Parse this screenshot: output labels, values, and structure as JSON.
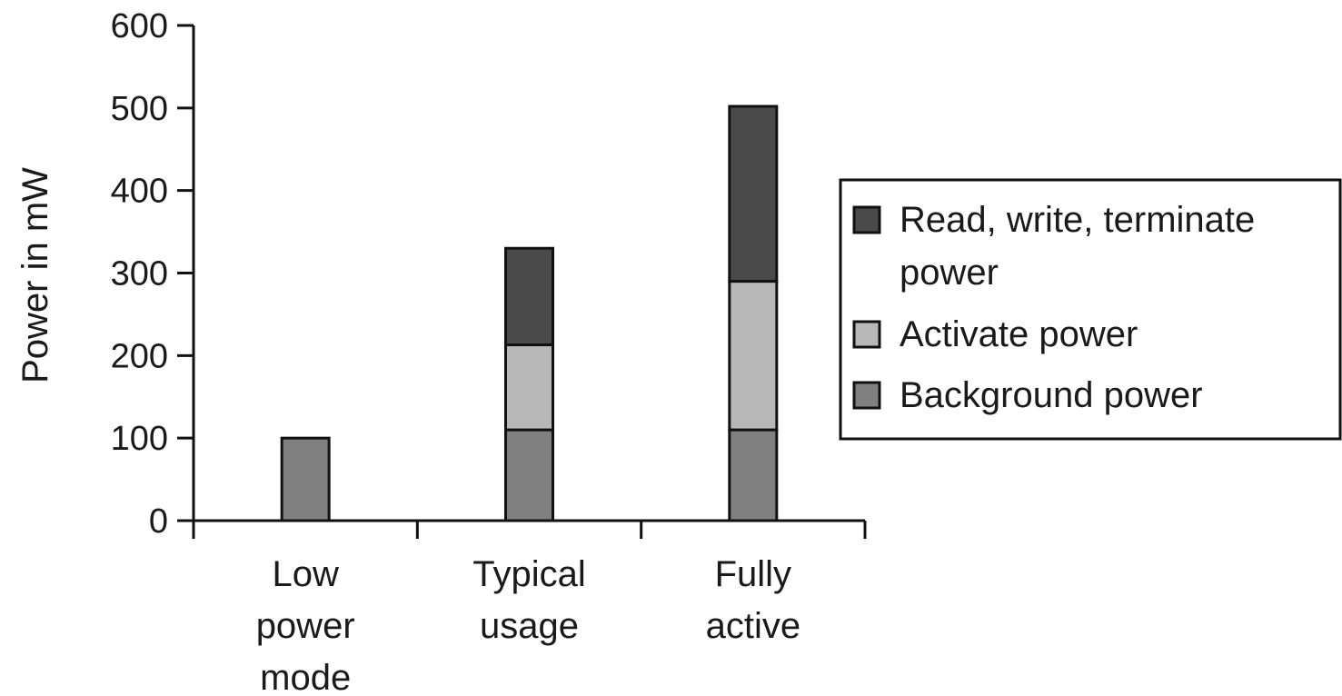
{
  "chart_data": {
    "type": "bar",
    "stacked": true,
    "title": "",
    "xlabel": "",
    "ylabel": "Power in mW",
    "ylim": [
      0,
      600
    ],
    "yticks": [
      0,
      100,
      200,
      300,
      400,
      500,
      600
    ],
    "grid": false,
    "legend_position": "right",
    "categories": [
      [
        "Low",
        "power",
        "mode"
      ],
      [
        "Typical",
        "usage"
      ],
      [
        "Fully",
        "active"
      ]
    ],
    "series": [
      {
        "name": "Background power",
        "values": [
          100,
          110,
          110
        ],
        "color": "#808080"
      },
      {
        "name": "Activate power",
        "values": [
          0,
          103,
          180
        ],
        "color": "#b8b8b8"
      },
      {
        "name": "Read, write, terminate power",
        "values": [
          0,
          117,
          212
        ],
        "color": "#4a4a4a"
      }
    ],
    "legend_entries": [
      {
        "series": 2,
        "lines": [
          "Read, write, terminate",
          "power"
        ]
      },
      {
        "series": 1,
        "lines": [
          "Activate power"
        ]
      },
      {
        "series": 0,
        "lines": [
          "Background power"
        ]
      }
    ]
  }
}
